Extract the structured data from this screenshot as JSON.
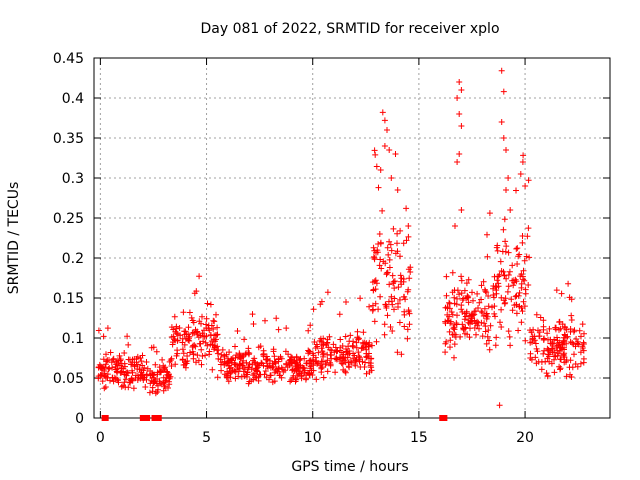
{
  "chart_data": {
    "type": "scatter",
    "title": "Day 081 of 2022, SRMTID for receiver xplo",
    "xlabel": "GPS time / hours",
    "ylabel": "SRMTID / TECUs",
    "xlim": [
      -0.3,
      24.0
    ],
    "ylim": [
      0,
      0.45
    ],
    "xticks": [
      0,
      5,
      10,
      15,
      20
    ],
    "yticks": [
      0,
      0.05,
      0.1,
      0.15,
      0.2,
      0.25,
      0.3,
      0.35,
      0.4,
      0.45
    ],
    "ytick_labels": [
      "0",
      "0.05",
      "0.1",
      "0.15",
      "0.2",
      "0.25",
      "0.3",
      "0.35",
      "0.4",
      "0.45"
    ],
    "xtick_labels": [
      "0",
      "5",
      "10",
      "15",
      "20"
    ],
    "grid": true,
    "marker": "+",
    "series_color": "#ff0000",
    "series": [
      {
        "name": "SRMTID",
        "segments": [
          {
            "x_start": -0.1,
            "x_end": 2.0,
            "base": 0.06,
            "spread": 0.02
          },
          {
            "x_start": 2.0,
            "x_end": 3.3,
            "base": 0.05,
            "spread": 0.018
          },
          {
            "x_start": 3.3,
            "x_end": 5.5,
            "base": 0.095,
            "spread": 0.03
          },
          {
            "x_start": 5.5,
            "x_end": 10.0,
            "base": 0.065,
            "spread": 0.02
          },
          {
            "x_start": 10.0,
            "x_end": 12.8,
            "base": 0.08,
            "spread": 0.025
          },
          {
            "x_start": 12.8,
            "x_end": 14.6,
            "base": 0.17,
            "spread": 0.07
          },
          {
            "x_start": 16.2,
            "x_end": 18.5,
            "base": 0.13,
            "spread": 0.04
          },
          {
            "x_start": 18.5,
            "x_end": 20.2,
            "base": 0.16,
            "spread": 0.06
          },
          {
            "x_start": 20.2,
            "x_end": 22.8,
            "base": 0.09,
            "spread": 0.03
          }
        ],
        "peaks": [
          {
            "x": 13.3,
            "y": 0.382
          },
          {
            "x": 13.4,
            "y": 0.372
          },
          {
            "x": 13.5,
            "y": 0.36
          },
          {
            "x": 13.4,
            "y": 0.34
          },
          {
            "x": 13.6,
            "y": 0.335
          },
          {
            "x": 13.9,
            "y": 0.33
          },
          {
            "x": 13.2,
            "y": 0.31
          },
          {
            "x": 14.0,
            "y": 0.285
          },
          {
            "x": 13.1,
            "y": 0.288
          },
          {
            "x": 14.4,
            "y": 0.262
          },
          {
            "x": 14.5,
            "y": 0.24
          },
          {
            "x": 13.7,
            "y": 0.3
          },
          {
            "x": 16.9,
            "y": 0.42
          },
          {
            "x": 17.0,
            "y": 0.41
          },
          {
            "x": 16.8,
            "y": 0.4
          },
          {
            "x": 16.9,
            "y": 0.38
          },
          {
            "x": 17.0,
            "y": 0.365
          },
          {
            "x": 16.9,
            "y": 0.33
          },
          {
            "x": 16.8,
            "y": 0.32
          },
          {
            "x": 17.0,
            "y": 0.26
          },
          {
            "x": 16.7,
            "y": 0.24
          },
          {
            "x": 18.9,
            "y": 0.434
          },
          {
            "x": 19.0,
            "y": 0.408
          },
          {
            "x": 18.9,
            "y": 0.37
          },
          {
            "x": 19.0,
            "y": 0.35
          },
          {
            "x": 19.1,
            "y": 0.335
          },
          {
            "x": 19.2,
            "y": 0.3
          },
          {
            "x": 19.1,
            "y": 0.285
          },
          {
            "x": 19.9,
            "y": 0.32
          },
          {
            "x": 19.8,
            "y": 0.305
          },
          {
            "x": 20.0,
            "y": 0.29
          },
          {
            "x": 19.3,
            "y": 0.26
          },
          {
            "x": 18.8,
            "y": 0.016
          }
        ],
        "zero_points": [
          0.2,
          0.25,
          2.0,
          2.2,
          2.55,
          2.65,
          2.75,
          16.1,
          16.2
        ]
      }
    ]
  }
}
